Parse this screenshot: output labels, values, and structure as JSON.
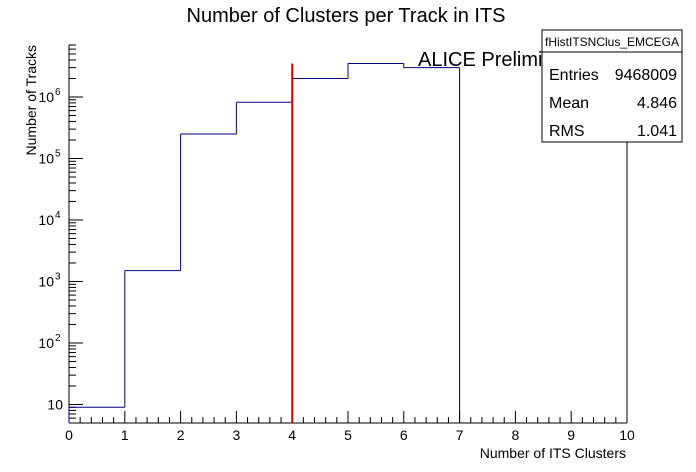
{
  "chart_data": {
    "type": "histogram",
    "title": "Number of Clusters per Track in ITS",
    "xlabel": "Number of ITS Clusters",
    "ylabel": "Number of Tracks",
    "xlim": [
      0,
      10
    ],
    "ylim": [
      5,
      7000000
    ],
    "yscale": "log",
    "x_ticks": [
      "0",
      "1",
      "2",
      "3",
      "4",
      "5",
      "6",
      "7",
      "8",
      "9",
      "10"
    ],
    "y_ticks": [
      {
        "value": 10,
        "label": "10"
      },
      {
        "value": 100,
        "label": "10",
        "exp": "2"
      },
      {
        "value": 1000,
        "label": "10",
        "exp": "3"
      },
      {
        "value": 10000,
        "label": "10",
        "exp": "4"
      },
      {
        "value": 100000,
        "label": "10",
        "exp": "5"
      },
      {
        "value": 1000000,
        "label": "10",
        "exp": "6"
      }
    ],
    "bins": [
      {
        "low": 0,
        "high": 1,
        "value": 9
      },
      {
        "low": 1,
        "high": 2,
        "value": 1500
      },
      {
        "low": 2,
        "high": 3,
        "value": 250000
      },
      {
        "low": 3,
        "high": 4,
        "value": 820000
      },
      {
        "low": 4,
        "high": 5,
        "value": 2000000
      },
      {
        "low": 5,
        "high": 6,
        "value": 3500000
      },
      {
        "low": 6,
        "high": 7,
        "value": 3000000
      },
      {
        "low": 7,
        "high": 8,
        "value": 0
      },
      {
        "low": 8,
        "high": 9,
        "value": 0
      },
      {
        "low": 9,
        "high": 10,
        "value": 0
      }
    ],
    "cut_line": {
      "x": 4,
      "y_top": 3500000,
      "color": "#e00000"
    },
    "series_color": "#000080",
    "annotation": "ALICE Preliminary",
    "stats_box": {
      "title": "fHistITSNClus_EMCEGA",
      "rows": [
        {
          "label": "Entries",
          "value": "9468009"
        },
        {
          "label": "Mean",
          "value": "4.846"
        },
        {
          "label": "RMS",
          "value": "1.041"
        }
      ],
      "placement": "top-right"
    }
  }
}
